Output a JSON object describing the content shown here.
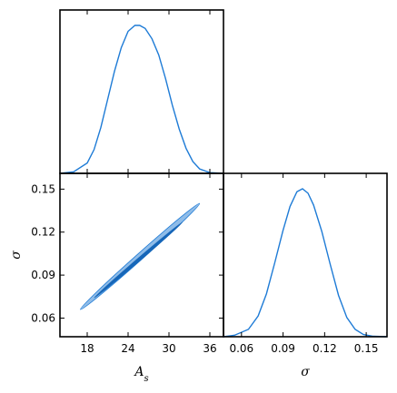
{
  "colors": {
    "curve": "#1e7bd6",
    "contour_outer": "#8fbce8",
    "contour_inner": "#1666b8"
  },
  "chart_data": [
    {
      "type": "line",
      "panel": "marginal-As",
      "xlabel": "",
      "ylabel": "",
      "xlim": [
        14,
        38
      ],
      "grid": false,
      "x": [
        14,
        16,
        18,
        19,
        20,
        21,
        22,
        23,
        24,
        25,
        25.7,
        26.5,
        27.5,
        28.5,
        29.5,
        30.5,
        31.5,
        32.5,
        33.5,
        34.5,
        36,
        38
      ],
      "y": [
        0.0,
        0.01,
        0.07,
        0.16,
        0.31,
        0.5,
        0.69,
        0.85,
        0.96,
        1.0,
        1.0,
        0.98,
        0.91,
        0.8,
        0.64,
        0.46,
        0.3,
        0.17,
        0.08,
        0.03,
        0.005,
        0.0
      ]
    },
    {
      "type": "scatter",
      "panel": "joint-As-sigma",
      "xlabel": "A_s",
      "ylabel": "σ",
      "xlim": [
        14,
        38
      ],
      "ylim": [
        0.047,
        0.161
      ],
      "xticks": [
        "18",
        "24",
        "30",
        "36"
      ],
      "yticks": [
        "0.06",
        "0.09",
        "0.12",
        "0.15"
      ],
      "contours": [
        {
          "level": "outer",
          "x": [
            17.0,
            34.5
          ],
          "y": [
            0.066,
            0.14
          ]
        },
        {
          "level": "inner",
          "x": [
            19.0,
            32.0
          ],
          "y": [
            0.074,
            0.127
          ]
        }
      ]
    },
    {
      "type": "line",
      "panel": "marginal-sigma",
      "xlabel": "σ",
      "ylabel": "",
      "xlim": [
        0.047,
        0.165
      ],
      "xticks": [
        "0.06",
        "0.09",
        "0.12",
        "0.15"
      ],
      "grid": false,
      "x": [
        0.047,
        0.055,
        0.065,
        0.072,
        0.078,
        0.084,
        0.09,
        0.095,
        0.1,
        0.104,
        0.108,
        0.112,
        0.118,
        0.124,
        0.13,
        0.136,
        0.142,
        0.148,
        0.155,
        0.165
      ],
      "y": [
        0.0,
        0.01,
        0.05,
        0.14,
        0.29,
        0.5,
        0.72,
        0.88,
        0.98,
        1.0,
        0.97,
        0.89,
        0.71,
        0.49,
        0.28,
        0.13,
        0.05,
        0.015,
        0.003,
        0.0
      ]
    }
  ]
}
